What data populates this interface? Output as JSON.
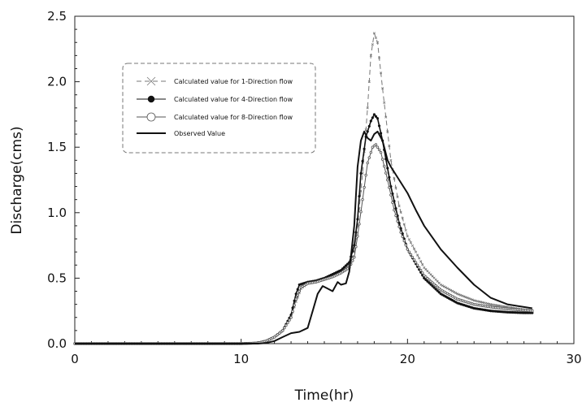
{
  "chart_data": {
    "type": "line",
    "xlabel": "Time(hr)",
    "ylabel": "Discharge(cms)",
    "xlim": [
      0,
      30
    ],
    "ylim": [
      0,
      2.5
    ],
    "x_ticks": [
      "0",
      "10",
      "20",
      "30"
    ],
    "y_ticks": [
      "0.0",
      "0.5",
      "1.0",
      "1.5",
      "2.0",
      "2.5"
    ],
    "grid": false,
    "legend_position": "top-left",
    "series": [
      {
        "name": "Calculated value for 1-Direction flow",
        "marker": "x",
        "color": "#777777",
        "dash": "6,4",
        "points": [
          [
            0,
            0
          ],
          [
            10,
            0
          ],
          [
            11,
            0.005
          ],
          [
            11.5,
            0.02
          ],
          [
            12,
            0.05
          ],
          [
            12.5,
            0.1
          ],
          [
            13,
            0.2
          ],
          [
            13.3,
            0.32
          ],
          [
            13.6,
            0.42
          ],
          [
            14,
            0.46
          ],
          [
            14.5,
            0.48
          ],
          [
            15,
            0.5
          ],
          [
            15.5,
            0.52
          ],
          [
            16,
            0.55
          ],
          [
            16.5,
            0.6
          ],
          [
            16.8,
            0.7
          ],
          [
            17,
            0.9
          ],
          [
            17.3,
            1.3
          ],
          [
            17.6,
            1.8
          ],
          [
            17.8,
            2.2
          ],
          [
            18,
            2.37
          ],
          [
            18.2,
            2.3
          ],
          [
            18.5,
            1.95
          ],
          [
            19,
            1.4
          ],
          [
            19.5,
            1.05
          ],
          [
            20,
            0.82
          ],
          [
            21,
            0.58
          ],
          [
            22,
            0.45
          ],
          [
            23,
            0.38
          ],
          [
            24,
            0.33
          ],
          [
            25,
            0.3
          ],
          [
            26,
            0.28
          ],
          [
            27,
            0.26
          ],
          [
            27.5,
            0.255
          ]
        ]
      },
      {
        "name": "Calculated value for 4-Direction flow",
        "marker": "filled-circle",
        "color": "#111111",
        "dash": "",
        "points": [
          [
            0,
            0
          ],
          [
            10,
            0
          ],
          [
            11,
            0.005
          ],
          [
            11.5,
            0.02
          ],
          [
            12,
            0.05
          ],
          [
            12.5,
            0.1
          ],
          [
            13,
            0.22
          ],
          [
            13.3,
            0.38
          ],
          [
            13.5,
            0.45
          ],
          [
            14,
            0.47
          ],
          [
            14.5,
            0.48
          ],
          [
            15,
            0.5
          ],
          [
            15.5,
            0.53
          ],
          [
            16,
            0.56
          ],
          [
            16.5,
            0.62
          ],
          [
            16.8,
            0.75
          ],
          [
            17,
            0.95
          ],
          [
            17.2,
            1.3
          ],
          [
            17.5,
            1.58
          ],
          [
            17.8,
            1.7
          ],
          [
            18,
            1.75
          ],
          [
            18.2,
            1.72
          ],
          [
            18.5,
            1.55
          ],
          [
            19,
            1.2
          ],
          [
            19.5,
            0.92
          ],
          [
            20,
            0.72
          ],
          [
            21,
            0.5
          ],
          [
            22,
            0.38
          ],
          [
            23,
            0.31
          ],
          [
            24,
            0.27
          ],
          [
            25,
            0.25
          ],
          [
            26,
            0.24
          ],
          [
            27,
            0.235
          ],
          [
            27.5,
            0.235
          ]
        ]
      },
      {
        "name": "Calculated value for 8-Direction flow",
        "marker": "open-circle",
        "color": "#555555",
        "dash": "",
        "points": [
          [
            0,
            0
          ],
          [
            10,
            0
          ],
          [
            11,
            0.005
          ],
          [
            11.5,
            0.02
          ],
          [
            12,
            0.05
          ],
          [
            12.5,
            0.1
          ],
          [
            13,
            0.2
          ],
          [
            13.3,
            0.34
          ],
          [
            13.6,
            0.43
          ],
          [
            14,
            0.46
          ],
          [
            14.5,
            0.47
          ],
          [
            15,
            0.49
          ],
          [
            15.5,
            0.51
          ],
          [
            16,
            0.54
          ],
          [
            16.5,
            0.58
          ],
          [
            16.8,
            0.66
          ],
          [
            17,
            0.82
          ],
          [
            17.3,
            1.1
          ],
          [
            17.6,
            1.38
          ],
          [
            17.9,
            1.5
          ],
          [
            18.1,
            1.52
          ],
          [
            18.4,
            1.46
          ],
          [
            18.8,
            1.25
          ],
          [
            19.2,
            1.02
          ],
          [
            19.6,
            0.85
          ],
          [
            20,
            0.72
          ],
          [
            21,
            0.52
          ],
          [
            22,
            0.41
          ],
          [
            23,
            0.34
          ],
          [
            24,
            0.3
          ],
          [
            25,
            0.28
          ],
          [
            26,
            0.265
          ],
          [
            27,
            0.255
          ],
          [
            27.5,
            0.25
          ]
        ]
      },
      {
        "name": "Observed Value",
        "marker": "none",
        "color": "#111111",
        "dash": "",
        "points": [
          [
            0,
            0
          ],
          [
            11,
            0
          ],
          [
            11.5,
            0.005
          ],
          [
            12,
            0.02
          ],
          [
            12.5,
            0.05
          ],
          [
            13,
            0.08
          ],
          [
            13.5,
            0.09
          ],
          [
            14,
            0.12
          ],
          [
            14.3,
            0.25
          ],
          [
            14.6,
            0.38
          ],
          [
            14.9,
            0.44
          ],
          [
            15.2,
            0.42
          ],
          [
            15.5,
            0.4
          ],
          [
            15.8,
            0.47
          ],
          [
            16,
            0.45
          ],
          [
            16.3,
            0.46
          ],
          [
            16.5,
            0.55
          ],
          [
            16.8,
            0.9
          ],
          [
            17,
            1.35
          ],
          [
            17.2,
            1.55
          ],
          [
            17.4,
            1.62
          ],
          [
            17.6,
            1.57
          ],
          [
            17.8,
            1.55
          ],
          [
            18,
            1.6
          ],
          [
            18.2,
            1.62
          ],
          [
            18.5,
            1.55
          ],
          [
            18.8,
            1.4
          ],
          [
            19,
            1.35
          ],
          [
            19.5,
            1.25
          ],
          [
            20,
            1.15
          ],
          [
            20.5,
            1.02
          ],
          [
            21,
            0.9
          ],
          [
            22,
            0.72
          ],
          [
            23,
            0.58
          ],
          [
            24,
            0.45
          ],
          [
            25,
            0.35
          ],
          [
            26,
            0.3
          ],
          [
            27,
            0.28
          ],
          [
            27.5,
            0.27
          ]
        ]
      }
    ]
  }
}
